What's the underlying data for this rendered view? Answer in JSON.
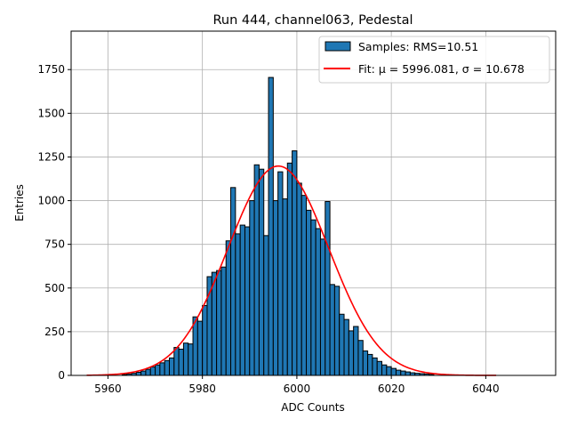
{
  "chart_data": {
    "type": "bar",
    "title": "Run 444, channel063, Pedestal",
    "xlabel": "ADC Counts",
    "ylabel": "Entries",
    "xlim": [
      5952.2,
      6054.8
    ],
    "ylim": [
      0,
      1970
    ],
    "x_ticks": [
      5960,
      5980,
      6000,
      6020,
      6040
    ],
    "y_ticks": [
      0,
      250,
      500,
      750,
      1000,
      1250,
      1500,
      1750
    ],
    "grid": true,
    "legend_position": "top-right",
    "colors": {
      "bar_fill": "#1f77b4",
      "bar_edge": "#000000",
      "fit_line": "#ff0000",
      "grid": "#b0b0b0"
    },
    "histogram": {
      "name": "Samples: RMS=10.51",
      "bin_edges": [
        5963,
        5964,
        5965,
        5966,
        5967,
        5968,
        5969,
        5970,
        5971,
        5972,
        5973,
        5974,
        5975,
        5976,
        5977,
        5978,
        5979,
        5980,
        5981,
        5982,
        5983,
        5984,
        5985,
        5986,
        5987,
        5988,
        5989,
        5990,
        5991,
        5992,
        5993,
        5994,
        5995,
        5996,
        5997,
        5998,
        5999,
        6000,
        6001,
        6002,
        6003,
        6004,
        6005,
        6006,
        6007,
        6008,
        6009,
        6010,
        6011,
        6012,
        6013,
        6014,
        6015,
        6016,
        6017,
        6018,
        6019,
        6020,
        6021,
        6022,
        6023,
        6024,
        6025,
        6026,
        6027,
        6028,
        6029
      ],
      "counts": [
        5,
        8,
        12,
        18,
        25,
        35,
        48,
        60,
        72,
        85,
        100,
        160,
        150,
        185,
        180,
        335,
        310,
        400,
        565,
        590,
        600,
        620,
        770,
        1075,
        810,
        860,
        850,
        1000,
        1205,
        1180,
        800,
        1705,
        1000,
        1165,
        1010,
        1215,
        1285,
        1100,
        1030,
        945,
        890,
        840,
        780,
        995,
        520,
        510,
        350,
        320,
        255,
        280,
        200,
        140,
        120,
        100,
        80,
        60,
        50,
        40,
        30,
        25,
        20,
        15,
        12,
        10,
        8,
        6
      ]
    },
    "fit": {
      "name": "Fit: μ = 5996.081, σ = 10.678",
      "mu": 5996.081,
      "sigma": 10.678,
      "amplitude": 1198,
      "x_range": [
        5955.5,
        6042.2
      ]
    }
  }
}
